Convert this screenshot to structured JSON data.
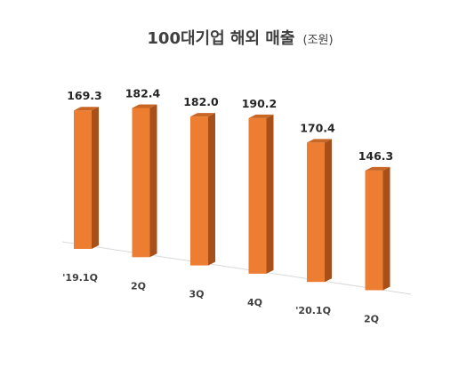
{
  "chart_data": {
    "type": "bar",
    "title": "100대기업 해외 매출",
    "unit": "(조원)",
    "categories": [
      "'19.1Q",
      "2Q",
      "3Q",
      "4Q",
      "'20.1Q",
      "2Q"
    ],
    "values": [
      169.3,
      182.4,
      182.0,
      190.2,
      170.4,
      146.3
    ],
    "value_labels": [
      "169.3",
      "182.4",
      "182.0",
      "190.2",
      "170.4",
      "146.3"
    ],
    "xlabel": "",
    "ylabel": "",
    "grid": false,
    "legend": "none",
    "style": "3d-column",
    "colors": {
      "front": "#ED7D31",
      "side": "#A8501A",
      "top": "#C86623",
      "floor": "#D9D9D9"
    }
  }
}
